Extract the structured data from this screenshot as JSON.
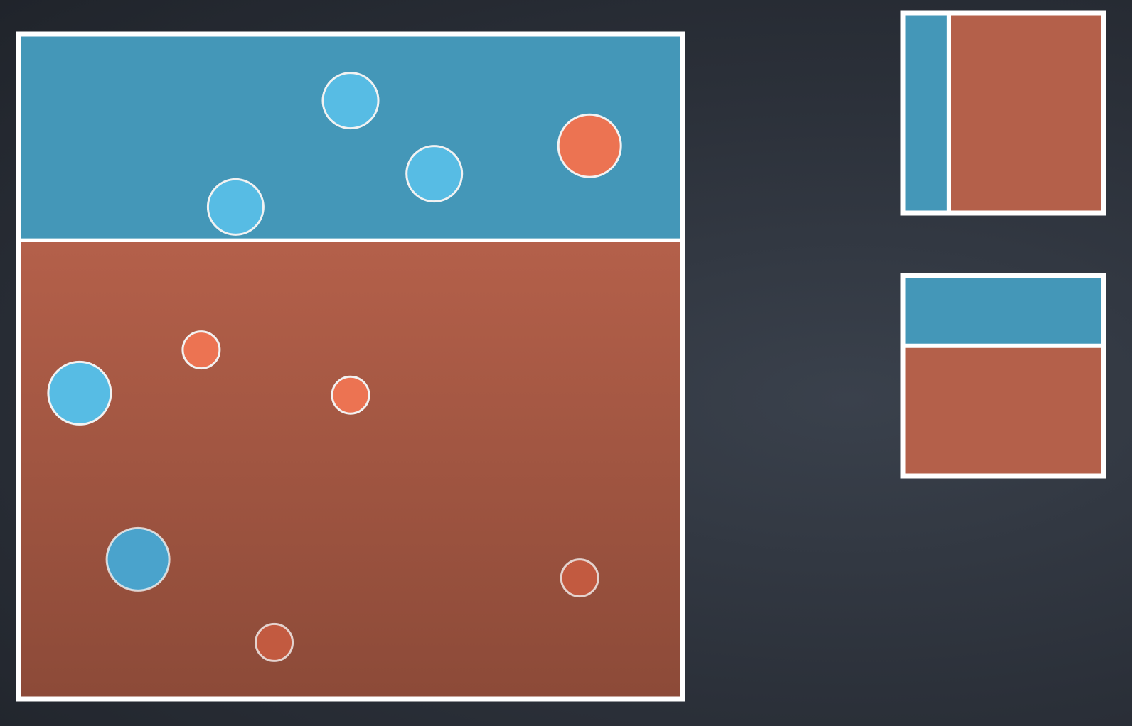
{
  "colors": {
    "blue_region": "#4497b8",
    "red_region": "#b4604a",
    "red_region_dark": "#8c4a38",
    "point_blue_light": "#57bce4",
    "point_blue_dark": "#4aa3cc",
    "point_red_light": "#ec7352",
    "point_red_dark": "#c25a40",
    "border": "#ffffff"
  },
  "main_split": {
    "orientation": "horizontal",
    "blue_fraction": 0.31,
    "blue_side": "top"
  },
  "main_points": [
    {
      "class": "blue",
      "tone": "light",
      "u": 0.5,
      "v": 0.1,
      "weight": "medium"
    },
    {
      "class": "blue",
      "tone": "light",
      "u": 0.626,
      "v": 0.21,
      "weight": "medium"
    },
    {
      "class": "blue",
      "tone": "light",
      "u": 0.327,
      "v": 0.26,
      "weight": "medium"
    },
    {
      "class": "red",
      "tone": "light",
      "u": 0.86,
      "v": 0.168,
      "weight": "large"
    },
    {
      "class": "blue",
      "tone": "light",
      "u": 0.092,
      "v": 0.54,
      "weight": "large"
    },
    {
      "class": "red",
      "tone": "light",
      "u": 0.275,
      "v": 0.475,
      "weight": "small"
    },
    {
      "class": "red",
      "tone": "light",
      "u": 0.5,
      "v": 0.543,
      "weight": "small"
    },
    {
      "class": "blue",
      "tone": "dark",
      "u": 0.18,
      "v": 0.79,
      "weight": "large"
    },
    {
      "class": "red",
      "tone": "dark",
      "u": 0.845,
      "v": 0.818,
      "weight": "small"
    },
    {
      "class": "red",
      "tone": "dark",
      "u": 0.385,
      "v": 0.915,
      "weight": "small"
    }
  ],
  "thumbnails": [
    {
      "name": "vertical-split-thumbnail",
      "orientation": "vertical",
      "blue_fraction": 0.23,
      "blue_side": "left"
    },
    {
      "name": "horizontal-split-thumbnail",
      "orientation": "horizontal",
      "blue_fraction": 0.35,
      "blue_side": "top"
    }
  ]
}
